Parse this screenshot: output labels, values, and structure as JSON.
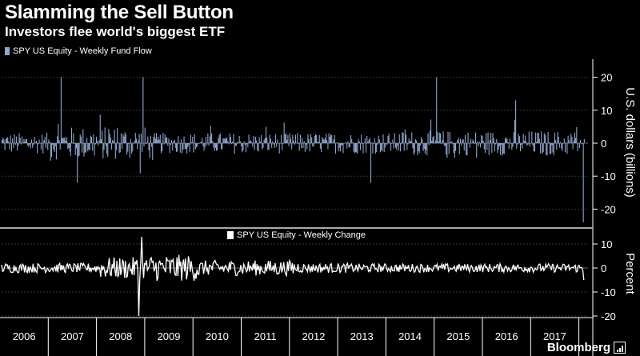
{
  "header": {
    "title": "Slamming the Sell Button",
    "subtitle": "Investors flee world's biggest ETF"
  },
  "brand": {
    "name": "Bloomberg",
    "logo_icon": "bloomberg-bars-icon"
  },
  "colors": {
    "flow": "#8fa6cc",
    "change": "#ffffff",
    "background": "#000000"
  },
  "chart_data": [
    {
      "type": "bar",
      "legend": "SPY US Equity - Weekly Fund Flow",
      "ylabel": "U.S. dollars (billions)",
      "ylim": [
        -25,
        25
      ],
      "yticks": [
        20,
        10,
        0,
        -10,
        -20
      ],
      "x_categories": [
        "2006",
        "2007",
        "2008",
        "2009",
        "2010",
        "2011",
        "2012",
        "2013",
        "2014",
        "2015",
        "2016",
        "2017"
      ],
      "grid": true,
      "series_name": "SPY US Equity - Weekly Fund Flow",
      "weeks_per_year": 52,
      "notable_points": [
        {
          "year": "2007",
          "value": 20
        },
        {
          "year": "2007",
          "value": -12
        },
        {
          "year": "2008",
          "value": 20
        },
        {
          "year": "2013",
          "value": -12
        },
        {
          "year": "2014",
          "value": 20
        },
        {
          "year": "2016",
          "value": 13
        },
        {
          "year": "2017",
          "value": -24
        }
      ]
    },
    {
      "type": "line",
      "legend": "SPY US Equity - Weekly Change",
      "ylabel": "Percent",
      "ylim": [
        -20,
        15
      ],
      "yticks": [
        10,
        0,
        -10,
        -20
      ],
      "x_categories": [
        "2006",
        "2007",
        "2008",
        "2009",
        "2010",
        "2011",
        "2012",
        "2013",
        "2014",
        "2015",
        "2016",
        "2017"
      ],
      "grid": true,
      "series_name": "SPY US Equity - Weekly Change",
      "notable_points": [
        {
          "year": "2008",
          "value": -20
        },
        {
          "year": "2008",
          "value": 13
        }
      ]
    }
  ]
}
